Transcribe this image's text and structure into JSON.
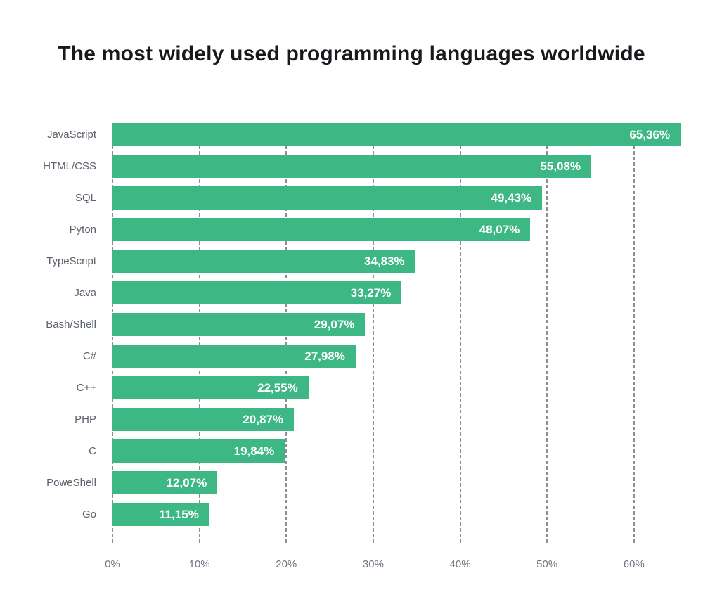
{
  "chart_data": {
    "type": "bar",
    "orientation": "horizontal",
    "title": "The most widely used programming languages worldwide",
    "categories": [
      "JavaScript",
      "HTML/CSS",
      "SQL",
      "Pyton",
      "TypeScript",
      "Java",
      "Bash/Shell",
      "C#",
      "C++",
      "PHP",
      "C",
      "PoweShell",
      "Go"
    ],
    "values": [
      65.36,
      55.08,
      49.43,
      48.07,
      34.83,
      33.27,
      29.07,
      27.98,
      22.55,
      20.87,
      19.84,
      12.07,
      11.15
    ],
    "value_labels": [
      "65,36%",
      "55,08%",
      "49,43%",
      "48,07%",
      "34,83%",
      "33,27%",
      "29,07%",
      "27,98%",
      "22,55%",
      "20,87%",
      "19,84%",
      "12,07%",
      "11,15%"
    ],
    "x_ticks": [
      {
        "value": 0,
        "label": "0%"
      },
      {
        "value": 10,
        "label": "10%"
      },
      {
        "value": 20,
        "label": "20%"
      },
      {
        "value": 30,
        "label": "30%"
      },
      {
        "value": 40,
        "label": "40%"
      },
      {
        "value": 50,
        "label": "50%"
      },
      {
        "value": 60,
        "label": "60%"
      }
    ],
    "xlim": [
      0,
      66
    ],
    "xlabel": "",
    "ylabel": "",
    "grid": "vertical-dashed",
    "legend": "none",
    "colors": {
      "bar": "#3db784",
      "value_label": "#ffffff",
      "category_label": "#5b626b",
      "tick_label": "#6f7680",
      "grid_line": "#8a8e96",
      "title": "#17191c",
      "background": "#ffffff"
    }
  }
}
